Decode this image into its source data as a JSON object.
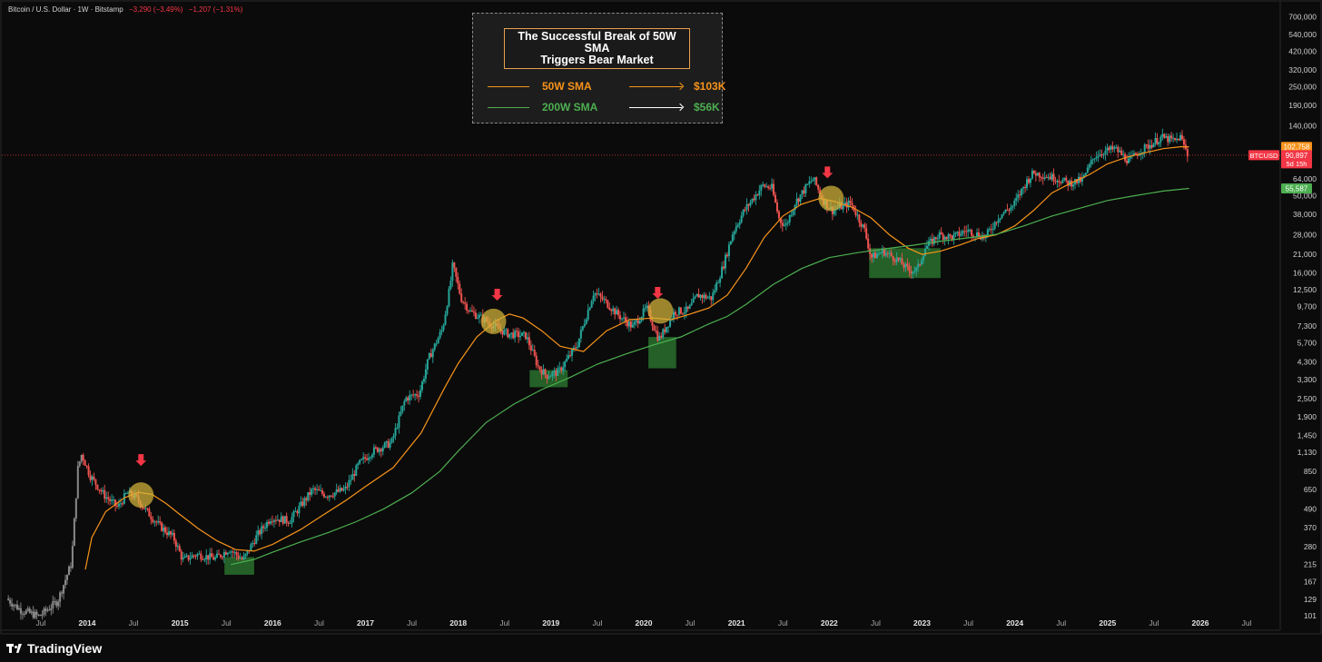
{
  "header": {
    "title": "Bitcoin / U.S. Dollar · 1W · Bitstamp",
    "change": "−3,290 (−3.49%)",
    "change2": "−1,207 (−1.31%)"
  },
  "legend": {
    "title_line1": "The Successful Break of 50W SMA",
    "title_line2": "Triggers Bear Market",
    "rows": [
      {
        "name": "50W SMA",
        "value": "$103K",
        "color": "#f7931a"
      },
      {
        "name": "200W SMA",
        "value": "$56K",
        "color": "#4caf50"
      }
    ]
  },
  "footer": {
    "brand": "TradingView"
  },
  "colors": {
    "background": "#0b0b0b",
    "up": "#26a69a",
    "down": "#ef5350",
    "sma50": "#f7931a",
    "sma200": "#4caf50",
    "marker": "#f23645",
    "circle": "#d4b43a",
    "box": "#2e7d32"
  },
  "chart_data": {
    "type": "line",
    "symbol": "BTCUSD",
    "title": "The Successful Break of 50W SMA Triggers Bear Market",
    "y_scale": "log",
    "ylim": [
      101,
      700000
    ],
    "y_ticks": [
      700000,
      540000,
      420000,
      320000,
      250000,
      190000,
      140000,
      64000,
      50000,
      38000,
      28000,
      21000,
      16000,
      12500,
      9700,
      7300,
      5700,
      4300,
      3300,
      2500,
      1900,
      1450,
      1130,
      850,
      650,
      490,
      370,
      280,
      215,
      167,
      129,
      101
    ],
    "y_tick_labels": [
      "700,000",
      "540,000",
      "420,000",
      "320,000",
      "250,000",
      "190,000",
      "140,000",
      "64,000",
      "50,000",
      "38,000",
      "28,000",
      "21,000",
      "16,000",
      "12,500",
      "9,700",
      "7,300",
      "5,700",
      "4,300",
      "3,300",
      "2,500",
      "1,900",
      "1,450",
      "1,130",
      "850",
      "650",
      "490",
      "370",
      "280",
      "215",
      "167",
      "129",
      "101"
    ],
    "x_ticks": [
      {
        "t": 2013.5,
        "label": "Jul"
      },
      {
        "t": 2014.0,
        "label": "2014"
      },
      {
        "t": 2014.5,
        "label": "Jul"
      },
      {
        "t": 2015.0,
        "label": "2015"
      },
      {
        "t": 2015.5,
        "label": "Jul"
      },
      {
        "t": 2016.0,
        "label": "2016"
      },
      {
        "t": 2016.5,
        "label": "Jul"
      },
      {
        "t": 2017.0,
        "label": "2017"
      },
      {
        "t": 2017.5,
        "label": "Jul"
      },
      {
        "t": 2018.0,
        "label": "2018"
      },
      {
        "t": 2018.5,
        "label": "Jul"
      },
      {
        "t": 2019.0,
        "label": "2019"
      },
      {
        "t": 2019.5,
        "label": "Jul"
      },
      {
        "t": 2020.0,
        "label": "2020"
      },
      {
        "t": 2020.5,
        "label": "Jul"
      },
      {
        "t": 2021.0,
        "label": "2021"
      },
      {
        "t": 2021.5,
        "label": "Jul"
      },
      {
        "t": 2022.0,
        "label": "2022"
      },
      {
        "t": 2022.5,
        "label": "Jul"
      },
      {
        "t": 2023.0,
        "label": "2023"
      },
      {
        "t": 2023.5,
        "label": "Jul"
      },
      {
        "t": 2024.0,
        "label": "2024"
      },
      {
        "t": 2024.5,
        "label": "Jul"
      },
      {
        "t": 2025.0,
        "label": "2025"
      },
      {
        "t": 2025.5,
        "label": "Jul"
      },
      {
        "t": 2026.0,
        "label": "2026"
      },
      {
        "t": 2026.5,
        "label": "Jul"
      }
    ],
    "price_keypoints": [
      [
        2013.15,
        130
      ],
      [
        2013.3,
        110
      ],
      [
        2013.5,
        100
      ],
      [
        2013.7,
        125
      ],
      [
        2013.85,
        220
      ],
      [
        2013.92,
        900
      ],
      [
        2013.96,
        1100
      ],
      [
        2014.05,
        800
      ],
      [
        2014.2,
        600
      ],
      [
        2014.35,
        500
      ],
      [
        2014.45,
        620
      ],
      [
        2014.55,
        580
      ],
      [
        2014.65,
        480
      ],
      [
        2014.8,
        380
      ],
      [
        2014.95,
        320
      ],
      [
        2015.05,
        230
      ],
      [
        2015.2,
        250
      ],
      [
        2015.4,
        235
      ],
      [
        2015.55,
        270
      ],
      [
        2015.7,
        230
      ],
      [
        2015.85,
        330
      ],
      [
        2016.0,
        430
      ],
      [
        2016.2,
        410
      ],
      [
        2016.45,
        650
      ],
      [
        2016.6,
        600
      ],
      [
        2016.8,
        650
      ],
      [
        2016.95,
        950
      ],
      [
        2017.1,
        1150
      ],
      [
        2017.3,
        1300
      ],
      [
        2017.45,
        2500
      ],
      [
        2017.6,
        2700
      ],
      [
        2017.7,
        4500
      ],
      [
        2017.85,
        7000
      ],
      [
        2017.93,
        13000
      ],
      [
        2017.96,
        18000
      ],
      [
        2018.05,
        11000
      ],
      [
        2018.15,
        9000
      ],
      [
        2018.3,
        8000
      ],
      [
        2018.45,
        7000
      ],
      [
        2018.55,
        6500
      ],
      [
        2018.75,
        6300
      ],
      [
        2018.88,
        4000
      ],
      [
        2018.97,
        3500
      ],
      [
        2019.1,
        3700
      ],
      [
        2019.3,
        5500
      ],
      [
        2019.48,
        12000
      ],
      [
        2019.6,
        10500
      ],
      [
        2019.75,
        8500
      ],
      [
        2019.9,
        7200
      ],
      [
        2020.05,
        9500
      ],
      [
        2020.18,
        6000
      ],
      [
        2020.22,
        6500
      ],
      [
        2020.35,
        9000
      ],
      [
        2020.5,
        9200
      ],
      [
        2020.6,
        11500
      ],
      [
        2020.75,
        11000
      ],
      [
        2020.88,
        18000
      ],
      [
        2020.98,
        29000
      ],
      [
        2021.1,
        40000
      ],
      [
        2021.3,
        58000
      ],
      [
        2021.4,
        56000
      ],
      [
        2021.48,
        35000
      ],
      [
        2021.55,
        32000
      ],
      [
        2021.65,
        45000
      ],
      [
        2021.8,
        60000
      ],
      [
        2021.85,
        64000
      ],
      [
        2021.95,
        47000
      ],
      [
        2022.05,
        40000
      ],
      [
        2022.25,
        45000
      ],
      [
        2022.4,
        30000
      ],
      [
        2022.47,
        20000
      ],
      [
        2022.6,
        22000
      ],
      [
        2022.75,
        19500
      ],
      [
        2022.88,
        16500
      ],
      [
        2022.97,
        16800
      ],
      [
        2023.05,
        23000
      ],
      [
        2023.2,
        28000
      ],
      [
        2023.35,
        27000
      ],
      [
        2023.5,
        30000
      ],
      [
        2023.7,
        27000
      ],
      [
        2023.85,
        37000
      ],
      [
        2024.0,
        43000
      ],
      [
        2024.15,
        62000
      ],
      [
        2024.22,
        70000
      ],
      [
        2024.45,
        65000
      ],
      [
        2024.6,
        60000
      ],
      [
        2024.75,
        63000
      ],
      [
        2024.88,
        90000
      ],
      [
        2024.98,
        96000
      ],
      [
        2025.1,
        100000
      ],
      [
        2025.25,
        83000
      ],
      [
        2025.35,
        95000
      ],
      [
        2025.5,
        108000
      ],
      [
        2025.6,
        118000
      ],
      [
        2025.75,
        112000
      ],
      [
        2025.8,
        120000
      ],
      [
        2025.85,
        103000
      ],
      [
        2025.88,
        90897
      ]
    ],
    "series": [
      {
        "name": "50W SMA",
        "points": [
          [
            2013.98,
            200
          ],
          [
            2014.05,
            320
          ],
          [
            2014.2,
            470
          ],
          [
            2014.4,
            575
          ],
          [
            2014.55,
            625
          ],
          [
            2014.7,
            605
          ],
          [
            2014.85,
            530
          ],
          [
            2015.0,
            450
          ],
          [
            2015.2,
            365
          ],
          [
            2015.4,
            305
          ],
          [
            2015.6,
            268
          ],
          [
            2015.8,
            262
          ],
          [
            2016.0,
            290
          ],
          [
            2016.3,
            360
          ],
          [
            2016.5,
            430
          ],
          [
            2016.8,
            560
          ],
          [
            2017.0,
            680
          ],
          [
            2017.3,
            900
          ],
          [
            2017.6,
            1500
          ],
          [
            2017.85,
            2900
          ],
          [
            2018.0,
            4200
          ],
          [
            2018.2,
            6200
          ],
          [
            2018.4,
            7800
          ],
          [
            2018.55,
            8700
          ],
          [
            2018.7,
            8200
          ],
          [
            2018.9,
            6800
          ],
          [
            2019.1,
            5400
          ],
          [
            2019.35,
            5000
          ],
          [
            2019.6,
            6800
          ],
          [
            2019.85,
            8000
          ],
          [
            2020.1,
            8200
          ],
          [
            2020.3,
            8000
          ],
          [
            2020.5,
            8700
          ],
          [
            2020.7,
            9500
          ],
          [
            2020.9,
            11500
          ],
          [
            2021.1,
            17000
          ],
          [
            2021.3,
            27000
          ],
          [
            2021.5,
            37000
          ],
          [
            2021.7,
            44000
          ],
          [
            2021.9,
            48000
          ],
          [
            2022.05,
            46000
          ],
          [
            2022.25,
            42000
          ],
          [
            2022.45,
            36000
          ],
          [
            2022.65,
            28000
          ],
          [
            2022.85,
            23000
          ],
          [
            2023.0,
            21000
          ],
          [
            2023.2,
            22000
          ],
          [
            2023.4,
            24000
          ],
          [
            2023.6,
            26500
          ],
          [
            2023.8,
            28000
          ],
          [
            2024.0,
            32000
          ],
          [
            2024.2,
            40000
          ],
          [
            2024.4,
            52000
          ],
          [
            2024.6,
            60000
          ],
          [
            2024.8,
            68000
          ],
          [
            2025.0,
            80000
          ],
          [
            2025.2,
            88000
          ],
          [
            2025.4,
            94000
          ],
          [
            2025.6,
            100000
          ],
          [
            2025.8,
            103000
          ],
          [
            2025.88,
            102758
          ]
        ]
      },
      {
        "name": "200W SMA",
        "points": [
          [
            2015.55,
            215
          ],
          [
            2015.8,
            232
          ],
          [
            2016.0,
            258
          ],
          [
            2016.3,
            300
          ],
          [
            2016.6,
            345
          ],
          [
            2016.9,
            405
          ],
          [
            2017.2,
            490
          ],
          [
            2017.5,
            620
          ],
          [
            2017.8,
            850
          ],
          [
            2018.0,
            1150
          ],
          [
            2018.3,
            1750
          ],
          [
            2018.6,
            2300
          ],
          [
            2018.9,
            2850
          ],
          [
            2019.2,
            3400
          ],
          [
            2019.5,
            4150
          ],
          [
            2019.8,
            4800
          ],
          [
            2020.1,
            5500
          ],
          [
            2020.4,
            6200
          ],
          [
            2020.7,
            7500
          ],
          [
            2020.9,
            8400
          ],
          [
            2021.1,
            10000
          ],
          [
            2021.4,
            13500
          ],
          [
            2021.7,
            17000
          ],
          [
            2022.0,
            20000
          ],
          [
            2022.3,
            21500
          ],
          [
            2022.6,
            22800
          ],
          [
            2022.9,
            24000
          ],
          [
            2023.2,
            25500
          ],
          [
            2023.5,
            26800
          ],
          [
            2023.8,
            28200
          ],
          [
            2024.1,
            32000
          ],
          [
            2024.4,
            37000
          ],
          [
            2024.7,
            41500
          ],
          [
            2025.0,
            46500
          ],
          [
            2025.3,
            50000
          ],
          [
            2025.6,
            53500
          ],
          [
            2025.88,
            55587
          ]
        ]
      }
    ],
    "price_labels": [
      {
        "value": 102758,
        "text": "102,758",
        "color": "#f7931a"
      },
      {
        "value": 90897,
        "text": "90,897",
        "color": "#f23645",
        "sub": "5d 15h",
        "tag": "BTCUSD"
      },
      {
        "value": 55587,
        "text": "55,587",
        "color": "#4caf50"
      }
    ],
    "current_price": 90897,
    "annotations": {
      "circles": [
        [
          2014.58,
          600
        ],
        [
          2018.38,
          7800
        ],
        [
          2020.18,
          9100
        ],
        [
          2022.02,
          48000
        ]
      ],
      "arrows": [
        [
          2014.58,
          1000
        ],
        [
          2018.42,
          11500
        ],
        [
          2020.15,
          11800
        ],
        [
          2021.98,
          70000
        ]
      ],
      "boxes": [
        {
          "t0": 2015.48,
          "t1": 2015.8,
          "p0": 185,
          "p1": 240
        },
        {
          "t0": 2018.77,
          "t1": 2019.18,
          "p0": 2950,
          "p1": 3800
        },
        {
          "t0": 2020.05,
          "t1": 2020.35,
          "p0": 3900,
          "p1": 6200
        },
        {
          "t0": 2022.43,
          "t1": 2023.2,
          "p0": 14800,
          "p1": 23000
        }
      ]
    }
  }
}
